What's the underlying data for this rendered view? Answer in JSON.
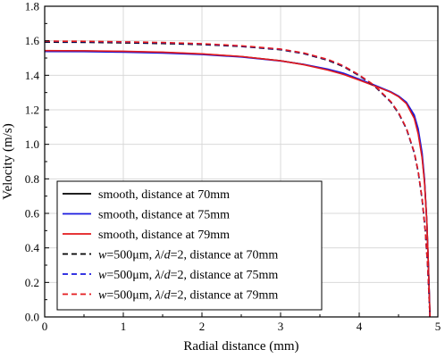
{
  "chart_data": {
    "type": "line",
    "title": "",
    "xlabel": "Radial distance (mm)",
    "ylabel": "Velocity (m/s)",
    "xlim": [
      0,
      5
    ],
    "ylim": [
      0.0,
      1.8
    ],
    "xticks": [
      "0",
      "1",
      "2",
      "3",
      "4",
      "5"
    ],
    "yticks": [
      "0.0",
      "0.2",
      "0.4",
      "0.6",
      "0.8",
      "1.0",
      "1.2",
      "1.4",
      "1.6",
      "1.8"
    ],
    "grid": true,
    "legend_position": "lower-left",
    "series": [
      {
        "name": "smooth, distance at 70mm",
        "color": "#000000",
        "style": "solid",
        "x": [
          0,
          0.5,
          1.0,
          1.5,
          2.0,
          2.5,
          3.0,
          3.3,
          3.6,
          3.8,
          4.0,
          4.2,
          4.4,
          4.5,
          4.6,
          4.7,
          4.75,
          4.8,
          4.83,
          4.86,
          4.88,
          4.9
        ],
        "y": [
          1.542,
          1.541,
          1.538,
          1.533,
          1.523,
          1.508,
          1.484,
          1.462,
          1.432,
          1.408,
          1.375,
          1.34,
          1.303,
          1.278,
          1.24,
          1.16,
          1.07,
          0.93,
          0.79,
          0.55,
          0.3,
          0.0
        ]
      },
      {
        "name": "smooth, distance at 75mm",
        "color": "#1a1adf",
        "style": "solid",
        "x": [
          0,
          0.5,
          1.0,
          1.5,
          2.0,
          2.5,
          3.0,
          3.3,
          3.6,
          3.8,
          4.0,
          4.2,
          4.4,
          4.5,
          4.6,
          4.7,
          4.75,
          4.8,
          4.83,
          4.86,
          4.88,
          4.9
        ],
        "y": [
          1.538,
          1.537,
          1.534,
          1.529,
          1.52,
          1.506,
          1.483,
          1.463,
          1.436,
          1.412,
          1.378,
          1.342,
          1.305,
          1.28,
          1.244,
          1.17,
          1.09,
          0.95,
          0.8,
          0.55,
          0.3,
          0.0
        ]
      },
      {
        "name": "smooth, distance at 79mm",
        "color": "#e31a1c",
        "style": "solid",
        "x": [
          0,
          0.5,
          1.0,
          1.5,
          2.0,
          2.5,
          3.0,
          3.3,
          3.6,
          3.8,
          4.0,
          4.2,
          4.4,
          4.5,
          4.6,
          4.7,
          4.75,
          4.8,
          4.83,
          4.86,
          4.88,
          4.9
        ],
        "y": [
          1.543,
          1.542,
          1.539,
          1.534,
          1.524,
          1.509,
          1.484,
          1.461,
          1.43,
          1.405,
          1.372,
          1.338,
          1.302,
          1.276,
          1.236,
          1.15,
          1.06,
          0.92,
          0.78,
          0.55,
          0.3,
          0.0
        ]
      },
      {
        "name": "w=500μm, λ/d=2, distance at 70mm",
        "color": "#000000",
        "style": "dashed",
        "x": [
          0,
          0.5,
          1.0,
          1.5,
          2.0,
          2.5,
          3.0,
          3.3,
          3.6,
          3.8,
          4.0,
          4.2,
          4.4,
          4.5,
          4.6,
          4.7,
          4.75,
          4.8,
          4.84,
          4.87,
          4.9
        ],
        "y": [
          1.592,
          1.591,
          1.588,
          1.584,
          1.578,
          1.567,
          1.548,
          1.525,
          1.487,
          1.45,
          1.398,
          1.335,
          1.245,
          1.18,
          1.09,
          0.95,
          0.84,
          0.68,
          0.5,
          0.3,
          0.0
        ]
      },
      {
        "name": "w=500μm, λ/d=2, distance at 75mm",
        "color": "#1a1adf",
        "style": "dashed",
        "x": [
          0,
          0.5,
          1.0,
          1.5,
          2.0,
          2.5,
          3.0,
          3.3,
          3.6,
          3.8,
          4.0,
          4.2,
          4.4,
          4.5,
          4.6,
          4.7,
          4.75,
          4.8,
          4.84,
          4.87,
          4.9
        ],
        "y": [
          1.596,
          1.595,
          1.592,
          1.588,
          1.581,
          1.569,
          1.55,
          1.527,
          1.49,
          1.453,
          1.4,
          1.337,
          1.247,
          1.182,
          1.092,
          0.952,
          0.842,
          0.682,
          0.5,
          0.3,
          0.0
        ]
      },
      {
        "name": "w=500μm, λ/d=2, distance at 79mm",
        "color": "#e31a1c",
        "style": "dashed",
        "x": [
          0,
          0.5,
          1.0,
          1.5,
          2.0,
          2.5,
          3.0,
          3.3,
          3.6,
          3.8,
          4.0,
          4.2,
          4.4,
          4.5,
          4.6,
          4.7,
          4.75,
          4.8,
          4.84,
          4.87,
          4.9
        ],
        "y": [
          1.598,
          1.597,
          1.594,
          1.59,
          1.583,
          1.571,
          1.552,
          1.529,
          1.492,
          1.455,
          1.402,
          1.339,
          1.249,
          1.184,
          1.094,
          0.954,
          0.844,
          0.684,
          0.5,
          0.3,
          0.0
        ]
      }
    ]
  }
}
